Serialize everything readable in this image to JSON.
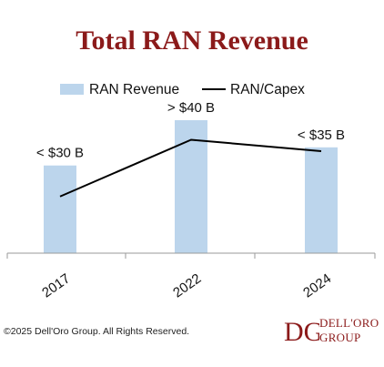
{
  "title": "Total RAN Revenue",
  "copyright": "©2025 Dell'Oro Group. All Rights Reserved.",
  "logo": {
    "monogram": "DG",
    "line1": "DELL'ORO",
    "line2": "GROUP"
  },
  "colors": {
    "bar": "#bcd5ec",
    "line": "#000000",
    "title": "#8b1a1a",
    "axis": "#9a9a9a"
  },
  "chart_data": {
    "type": "bar",
    "categories": [
      "2017",
      "2022",
      "2024"
    ],
    "series": [
      {
        "name": "RAN Revenue",
        "type": "bar",
        "values": [
          29,
          44,
          35
        ],
        "labels": [
          "< $30 B",
          "> $40 B",
          "< $35 B"
        ]
      },
      {
        "name": "RAN/Capex",
        "type": "line",
        "values": [
          0.45,
          0.9,
          0.81
        ]
      }
    ],
    "ylim": [
      0,
      50
    ],
    "line_ylim": [
      0,
      1.2
    ],
    "legend": "top",
    "grid": false
  }
}
